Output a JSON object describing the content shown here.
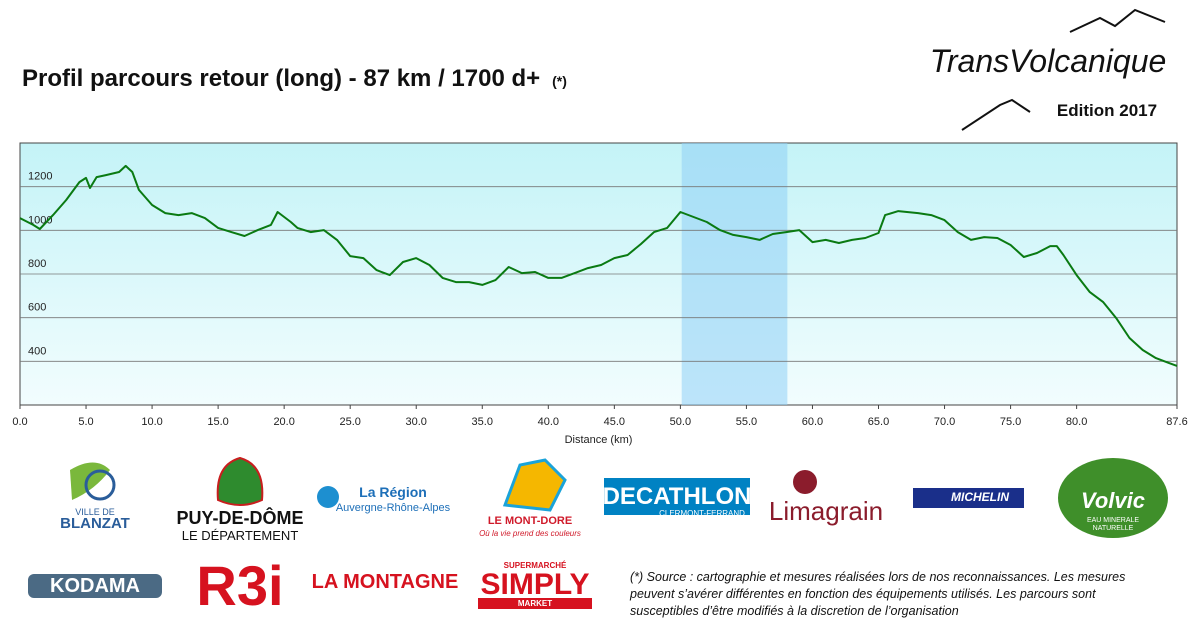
{
  "header": {
    "title": "Profil parcours retour (long) - 87 km / 1700 d+",
    "note_marker": "(*)",
    "brand": "TransVolcanique",
    "edition": "Edition 2017"
  },
  "chart_data": {
    "type": "line",
    "xlabel": "Distance  (km)",
    "color": "#0a7a12",
    "grid": true,
    "x": [
      0,
      1,
      1.5,
      2.5,
      3.5,
      4.5,
      5,
      5.3,
      5.8,
      6.5,
      7.5,
      8,
      8.5,
      9,
      10,
      11,
      12,
      13,
      14,
      15,
      16,
      17,
      18,
      19,
      19.5,
      20.5,
      21,
      22,
      23,
      24,
      25,
      26,
      27,
      28,
      29,
      30,
      31,
      32,
      33,
      34,
      35,
      36,
      37,
      38,
      39,
      40,
      41,
      42,
      43,
      44,
      45,
      46,
      47,
      48,
      49,
      50,
      51,
      52,
      53,
      54,
      55,
      56,
      57,
      58,
      59,
      60,
      61,
      62,
      63,
      64,
      65,
      65.5,
      66.5,
      68,
      69,
      70,
      71,
      72,
      73,
      74,
      75,
      76,
      77,
      78,
      78.5,
      79,
      80,
      81,
      82,
      83,
      84,
      85,
      86,
      87,
      87.6
    ],
    "values": [
      1056,
      1025,
      1006,
      1070,
      1139,
      1221,
      1240,
      1194,
      1244,
      1253,
      1267,
      1295,
      1267,
      1185,
      1116,
      1079,
      1070,
      1079,
      1056,
      1011,
      992,
      974,
      1001,
      1025,
      1084,
      1038,
      1011,
      992,
      1001,
      956,
      882,
      873,
      818,
      795,
      855,
      873,
      841,
      782,
      763,
      763,
      750,
      772,
      832,
      804,
      809,
      782,
      782,
      804,
      827,
      841,
      873,
      887,
      937,
      992,
      1011,
      1084,
      1061,
      1038,
      1001,
      979,
      969,
      956,
      983,
      992,
      1001,
      946,
      956,
      942,
      956,
      965,
      988,
      1070,
      1088,
      1079,
      1070,
      1047,
      992,
      956,
      969,
      965,
      933,
      878,
      896,
      928,
      928,
      887,
      795,
      717,
      672,
      598,
      507,
      452,
      415,
      392,
      379
    ],
    "xlim": [
      0,
      87.6
    ],
    "ylim": [
      200,
      1400
    ],
    "xticks": [
      {
        "value": 0,
        "label": "0.0"
      },
      {
        "value": 5,
        "label": "5.0"
      },
      {
        "value": 10,
        "label": "10.0"
      },
      {
        "value": 15,
        "label": "15.0"
      },
      {
        "value": 20,
        "label": "20.0"
      },
      {
        "value": 25,
        "label": "25.0"
      },
      {
        "value": 30,
        "label": "30.0"
      },
      {
        "value": 35,
        "label": "35.0"
      },
      {
        "value": 40,
        "label": "40.0"
      },
      {
        "value": 45,
        "label": "45.0"
      },
      {
        "value": 50,
        "label": "50.0"
      },
      {
        "value": 55,
        "label": "55.0"
      },
      {
        "value": 60,
        "label": "60.0"
      },
      {
        "value": 65,
        "label": "65.0"
      },
      {
        "value": 70,
        "label": "70.0"
      },
      {
        "value": 75,
        "label": "75.0"
      },
      {
        "value": 80,
        "label": "80.0"
      },
      {
        "value": 87.6,
        "label": "87.6"
      }
    ],
    "yticks": [
      400,
      600,
      800,
      1000,
      1200
    ],
    "highlight_range": [
      50.1,
      58.1
    ]
  },
  "sponsors": [
    [
      "VILLE DE",
      "BLANZAT"
    ],
    [
      "PUY-DE-DÔME",
      "LE DÉPARTEMENT"
    ],
    [
      "La Région",
      "Auvergne-Rhône-Alpes"
    ],
    [
      "LE MONT-DORE",
      "Où la vie prend des couleurs"
    ],
    [
      "DECATHLON",
      "CLERMONT-FERRAND"
    ],
    [
      "Limagrain"
    ],
    [
      "MICHELIN"
    ],
    [
      "Volvic",
      "EAU MINERALE",
      "NATURELLE"
    ],
    [
      "KODAMA"
    ],
    [
      "R3i"
    ],
    [
      "LA MONTAGNE"
    ],
    [
      "SUPERMARCHÉ",
      "SIMPLY",
      "MARKET"
    ]
  ],
  "footnote": [
    "(*) Source : cartographie et mesures réalisées lors de nos reconnaissances. Les mesures",
    "peuvent s’avérer différentes en fonction des équipements utilisés. Les parcours sont",
    "susceptibles d’être modifiés à la discretion de l’organisation"
  ]
}
